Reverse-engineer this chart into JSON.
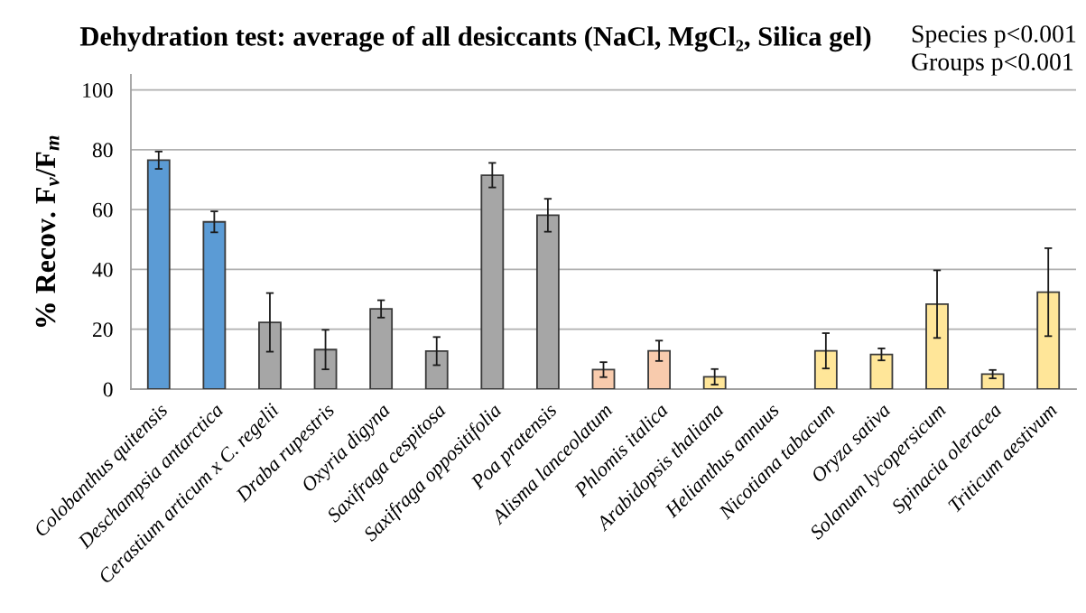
{
  "chart_data": {
    "type": "bar",
    "title": "Dehydration test: average of all desiccants (NaCl, MgCl₂, Silica gel)",
    "ylabel": "% Recov. F$_{v}$/F$_{m}$",
    "annotations": [
      "Species p<0.001",
      "Groups p<0.001"
    ],
    "categories": [
      "Colobanthus quitensis",
      "Deschampsia antarctica",
      "Cerastium articum x C. regelii",
      "Draba rupestris",
      "Oxyria digyna",
      "Saxifraga cespitosa",
      "Saxifraga oppositifolia",
      "Poa pratensis",
      "Alisma lanceolatum",
      "Phlomis italica",
      "Arabidopsis thaliana",
      "Helianthus annuus",
      "Nicotiana tabacum",
      "Oryza sativa",
      "Solanum lycopersicum",
      "Spinacia oleracea",
      "Triticum aestivum"
    ],
    "values": [
      76.5,
      55.9,
      22.3,
      13.2,
      26.8,
      12.7,
      71.5,
      58.1,
      6.5,
      12.8,
      4.1,
      null,
      12.8,
      11.6,
      28.4,
      5.0,
      32.4
    ],
    "errors": [
      2.9,
      3.5,
      9.8,
      6.6,
      2.9,
      4.7,
      4.1,
      5.5,
      2.5,
      3.4,
      2.6,
      null,
      5.9,
      2.0,
      11.3,
      1.4,
      14.7
    ],
    "colors": [
      "#5b9bd5",
      "#5b9bd5",
      "#a6a6a6",
      "#a6a6a6",
      "#a6a6a6",
      "#a6a6a6",
      "#a6a6a6",
      "#a6a6a6",
      "#f8cbad",
      "#f8cbad",
      "#ffe699",
      "#ffe699",
      "#ffe699",
      "#ffe699",
      "#ffe699",
      "#ffe699",
      "#ffe699"
    ],
    "ylim": [
      0,
      105
    ],
    "yticks": [
      0,
      20,
      40,
      60,
      80,
      100
    ],
    "grid": "y",
    "legend": false
  }
}
